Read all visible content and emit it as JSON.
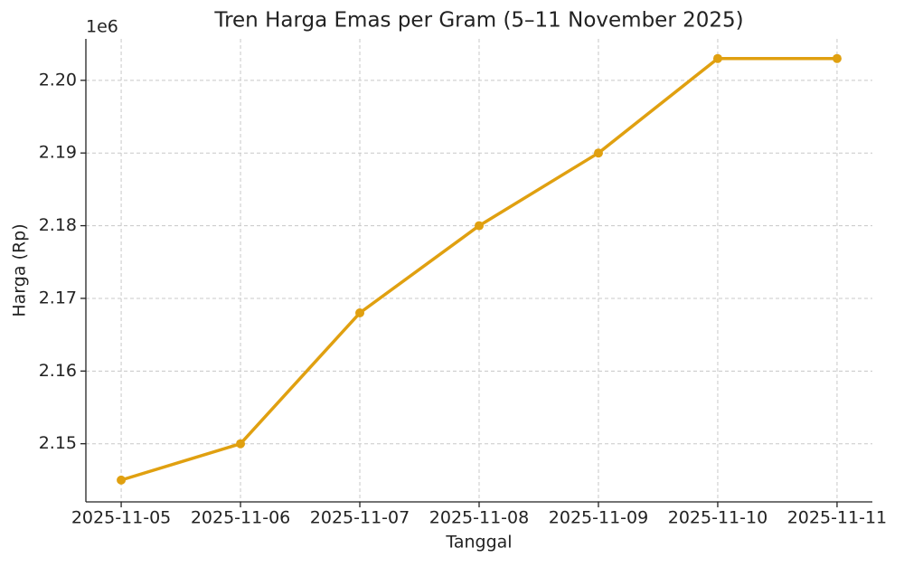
{
  "chart_data": {
    "type": "line",
    "title": "Tren Harga Emas per Gram (5–11 November 2025)",
    "x_label": "Tanggal",
    "y_label": "Harga (Rp)",
    "y_offset_label": "1e6",
    "categories": [
      "2025-11-05",
      "2025-11-06",
      "2025-11-07",
      "2025-11-08",
      "2025-11-09",
      "2025-11-10",
      "2025-11-11"
    ],
    "values": [
      2145000,
      2150000,
      2168000,
      2180000,
      2190000,
      2203000,
      2203000
    ],
    "color": "#e0a010",
    "ylim": [
      2142000,
      2205700
    ],
    "yticks": [
      {
        "value": 2150000,
        "label": "2.15"
      },
      {
        "value": 2160000,
        "label": "2.16"
      },
      {
        "value": 2170000,
        "label": "2.17"
      },
      {
        "value": 2180000,
        "label": "2.18"
      },
      {
        "value": 2190000,
        "label": "2.19"
      },
      {
        "value": 2200000,
        "label": "2.20"
      }
    ],
    "grid": true
  }
}
